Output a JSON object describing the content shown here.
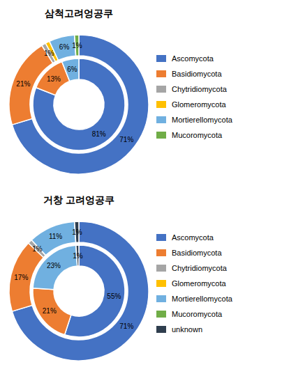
{
  "chart_data": [
    {
      "type": "pie",
      "title": "삼척고려엉공쿠",
      "categories": [
        "Ascomycota",
        "Basidiomycota",
        "Chytridiomycota",
        "Glomeromycota",
        "Mortierellomycota",
        "Mucoromycota"
      ],
      "colors": [
        "#4472C4",
        "#ED7D31",
        "#A5A5A5",
        "#FFC000",
        "#70B0E0",
        "#70AD47"
      ],
      "legend": "right",
      "data_labels": true,
      "series": [
        {
          "values": [
            71,
            21,
            1,
            1,
            6,
            1
          ],
          "value_labels": [
            "71%",
            "21%",
            "1%",
            null,
            "6%",
            "1%"
          ]
        },
        {
          "values": [
            81,
            13,
            null,
            null,
            6,
            null
          ],
          "value_labels": [
            "81%",
            "13%",
            null,
            null,
            "6%",
            null
          ]
        }
      ]
    },
    {
      "type": "pie",
      "title": "거창 고려엉공쿠",
      "categories": [
        "Ascomycota",
        "Basidiomycota",
        "Chytridiomycota",
        "Glomeromycota",
        "Mortierellomycota",
        "Mucoromycota",
        "unknown"
      ],
      "colors": [
        "#4472C4",
        "#ED7D31",
        "#A5A5A5",
        "#FFC000",
        "#70B0E0",
        "#70AD47",
        "#2F3E4E"
      ],
      "legend": "right",
      "data_labels": true,
      "series": [
        {
          "values": [
            71,
            17,
            1,
            null,
            11,
            null,
            1
          ],
          "value_labels": [
            "71%",
            "17%",
            "1%",
            null,
            "11%",
            null,
            "1%"
          ]
        },
        {
          "values": [
            55,
            21,
            null,
            null,
            23,
            null,
            1
          ],
          "value_labels": [
            "55%",
            "21%",
            null,
            null,
            "23%",
            null,
            "1%"
          ]
        }
      ]
    }
  ]
}
